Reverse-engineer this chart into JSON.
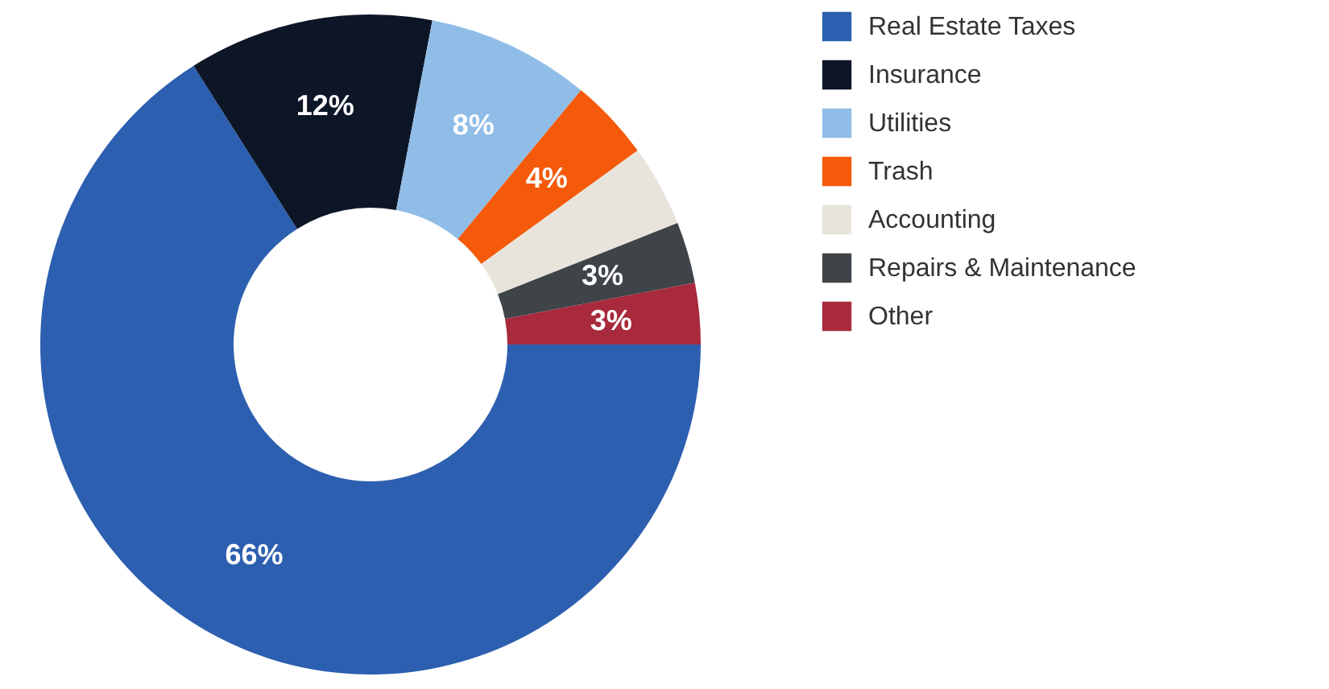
{
  "chart_data": {
    "type": "donut",
    "categories": [
      "Real Estate Taxes",
      "Insurance",
      "Utilities",
      "Trash",
      "Accounting",
      "Repairs & Maintenance",
      "Other"
    ],
    "values": [
      66,
      12,
      8,
      4,
      4,
      3,
      3
    ],
    "colors": [
      "#2d5fb0",
      "#0d1626",
      "#90bde8",
      "#f55a0a",
      "#e8e4dc",
      "#3f4449",
      "#a82a3c"
    ],
    "value_labels": [
      "66%",
      "12%",
      "8%",
      "4%",
      null,
      "3%",
      "3%"
    ],
    "legend": "right"
  }
}
